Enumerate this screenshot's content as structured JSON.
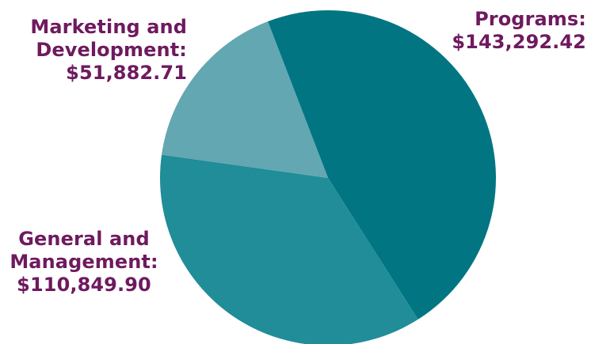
{
  "chart_data": {
    "type": "pie",
    "title": "",
    "slices": [
      {
        "name": "Programs",
        "value": 143292.42,
        "label_lines": [
          "Programs:",
          "$143,292.42"
        ],
        "color": "#017682"
      },
      {
        "name": "General and Management",
        "value": 110849.9,
        "label_lines": [
          "General and",
          "Management:",
          "$110,849.90"
        ],
        "color": "#208d98"
      },
      {
        "name": "Marketing and Development",
        "value": 51882.71,
        "label_lines": [
          "Marketing and",
          "Development:",
          "$51,882.71"
        ],
        "color": "#63a7b3"
      }
    ],
    "label_color": "#6e1a5f",
    "start_angle_deg": -21,
    "direction": "clockwise",
    "legend": "none"
  }
}
